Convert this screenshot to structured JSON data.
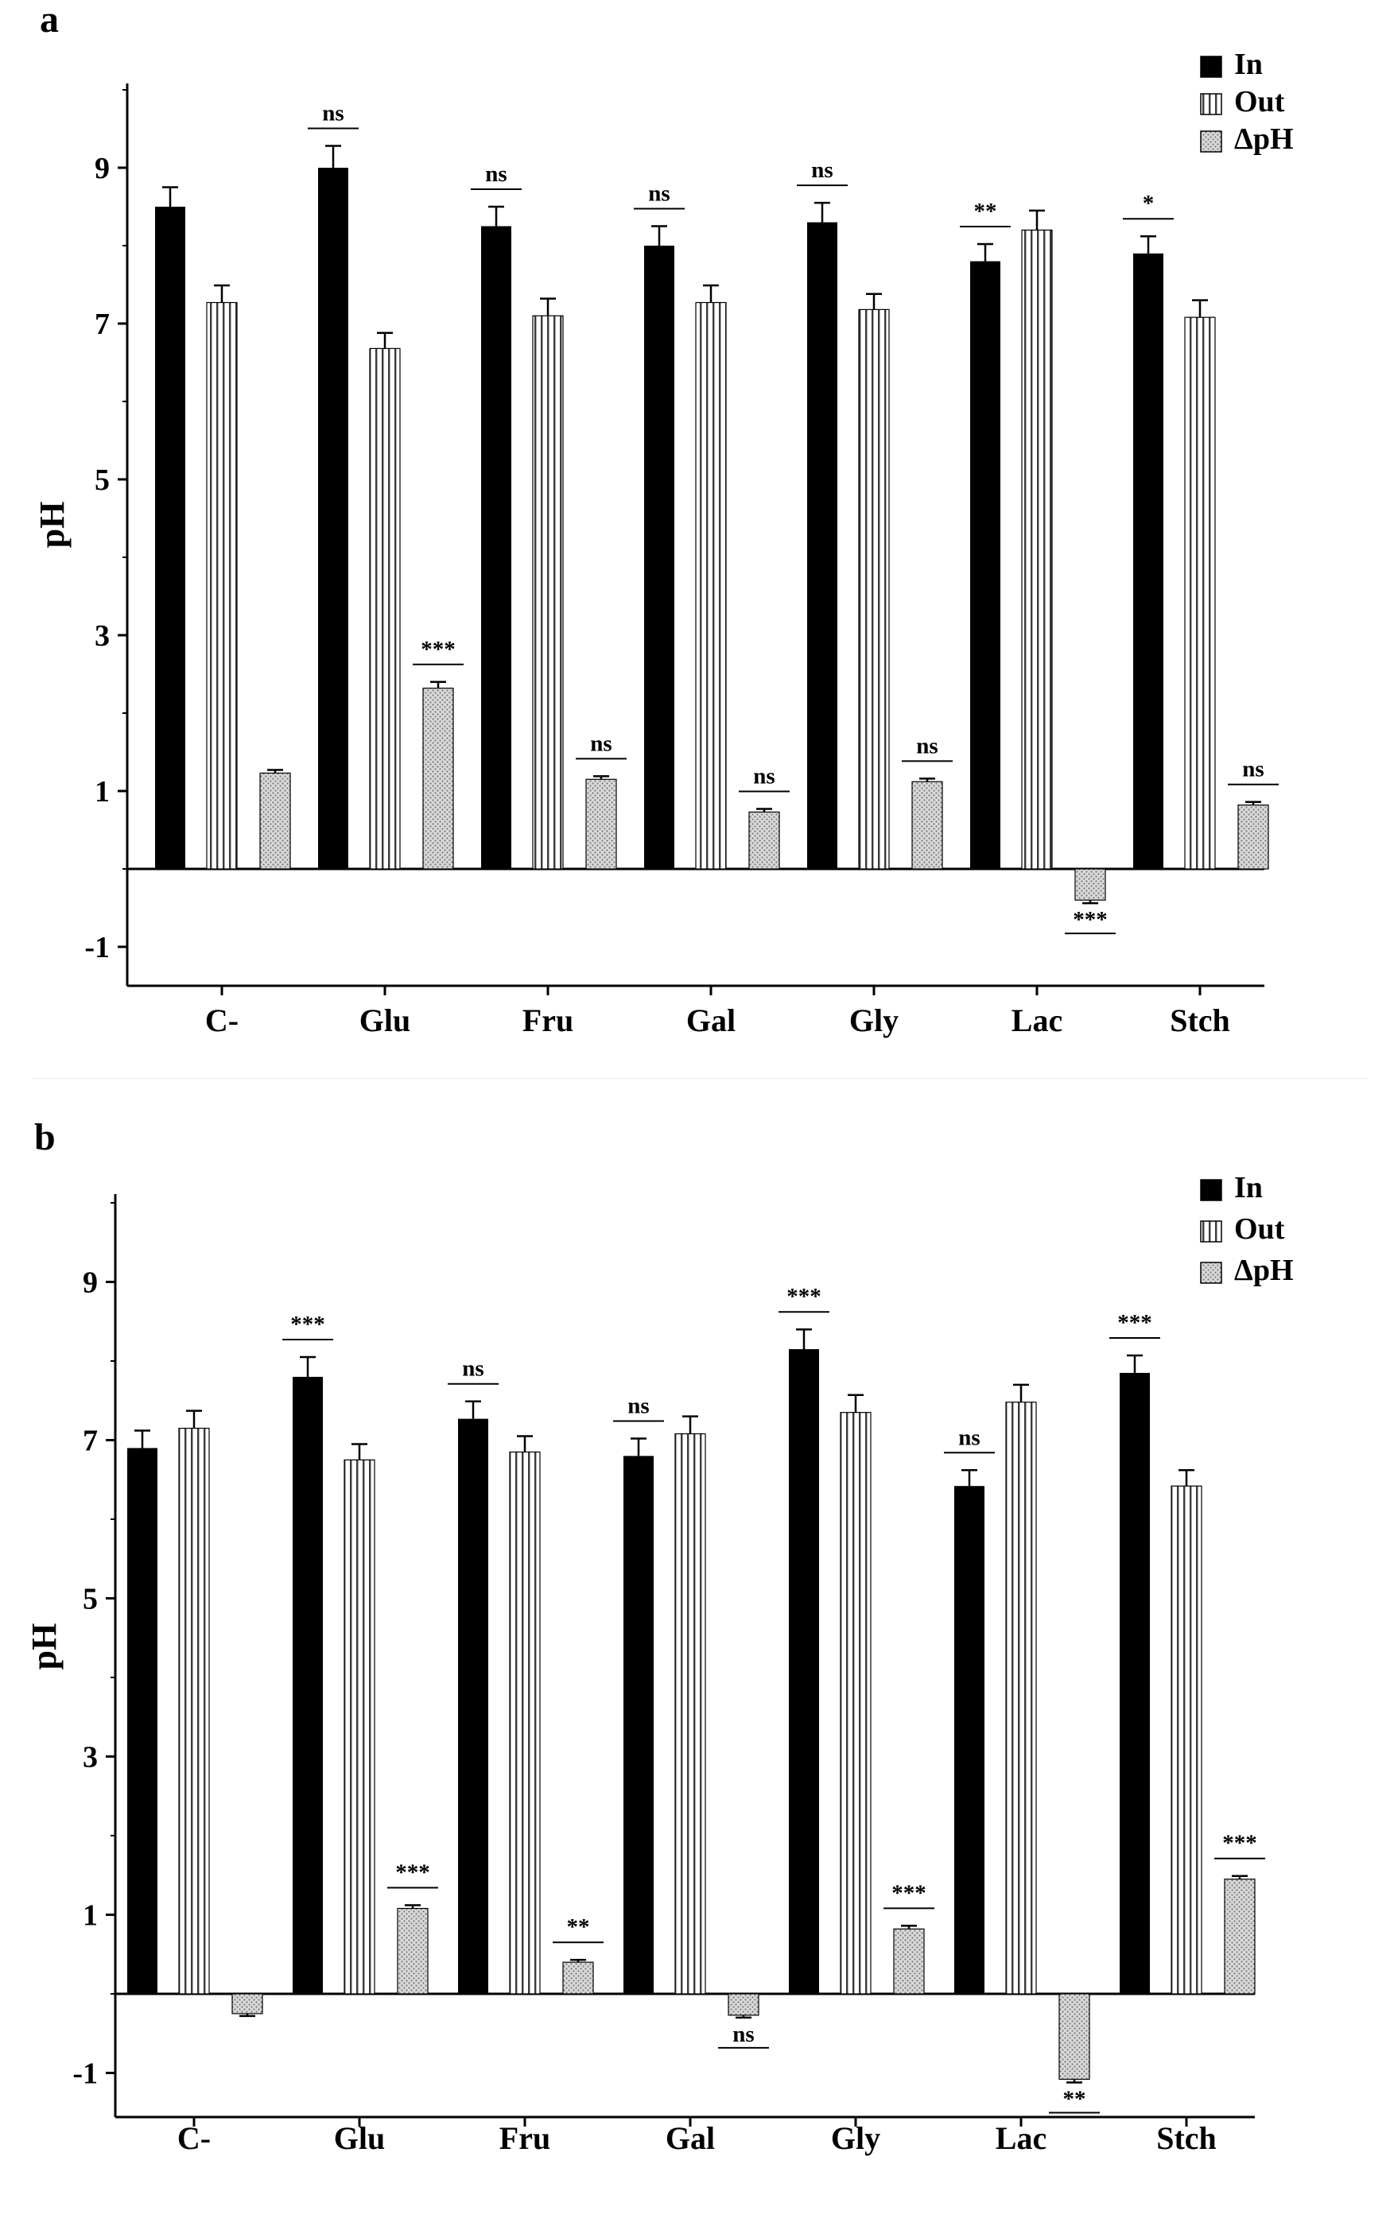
{
  "colors": {
    "in": "#000000",
    "out": "#ffffff",
    "delta": "#d9d9d9",
    "axis": "#000000"
  },
  "legend": [
    "In",
    "Out",
    "ΔpH"
  ],
  "chart_data": [
    {
      "panel": "a",
      "type": "bar",
      "ylabel": "pH",
      "ylim": [
        -1.5,
        10
      ],
      "yticks": [
        -1,
        1,
        3,
        5,
        7,
        9
      ],
      "categories": [
        "C-",
        "Glu",
        "Fru",
        "Gal",
        "Gly",
        "Lac",
        "Stch"
      ],
      "series": [
        {
          "name": "In",
          "values": [
            8.5,
            9.0,
            8.25,
            8.0,
            8.3,
            7.8,
            7.9
          ],
          "errors": [
            0.25,
            0.28,
            0.25,
            0.25,
            0.25,
            0.22,
            0.22
          ]
        },
        {
          "name": "Out",
          "values": [
            7.27,
            6.68,
            7.1,
            7.27,
            7.18,
            8.2,
            7.08
          ],
          "errors": [
            0.22,
            0.2,
            0.22,
            0.22,
            0.2,
            0.25,
            0.22
          ]
        },
        {
          "name": "ΔpH",
          "values": [
            1.23,
            2.32,
            1.15,
            0.73,
            1.12,
            -0.4,
            0.82
          ],
          "errors": [
            0.04,
            0.08,
            0.04,
            0.04,
            0.04,
            0.04,
            0.04
          ]
        }
      ],
      "annotations": [
        {
          "category": "Glu",
          "series": "In",
          "label": "ns"
        },
        {
          "category": "Fru",
          "series": "In",
          "label": "ns"
        },
        {
          "category": "Gal",
          "series": "In",
          "label": "ns"
        },
        {
          "category": "Gly",
          "series": "In",
          "label": "ns"
        },
        {
          "category": "Lac",
          "series": "In",
          "label": "**"
        },
        {
          "category": "Stch",
          "series": "In",
          "label": "*"
        },
        {
          "category": "Glu",
          "series": "ΔpH",
          "label": "***"
        },
        {
          "category": "Fru",
          "series": "ΔpH",
          "label": "ns"
        },
        {
          "category": "Gal",
          "series": "ΔpH",
          "label": "ns"
        },
        {
          "category": "Gly",
          "series": "ΔpH",
          "label": "ns"
        },
        {
          "category": "Lac",
          "series": "ΔpH",
          "label": "***"
        },
        {
          "category": "Stch",
          "series": "ΔpH",
          "label": "ns"
        }
      ]
    },
    {
      "panel": "b",
      "type": "bar",
      "ylabel": "pH",
      "ylim": [
        -1.5,
        10
      ],
      "yticks": [
        -1,
        1,
        3,
        5,
        7,
        9
      ],
      "categories": [
        "C-",
        "Glu",
        "Fru",
        "Gal",
        "Gly",
        "Lac",
        "Stch"
      ],
      "series": [
        {
          "name": "In",
          "values": [
            6.9,
            7.8,
            7.27,
            6.8,
            8.15,
            6.42,
            7.85
          ],
          "errors": [
            0.22,
            0.25,
            0.22,
            0.22,
            0.25,
            0.2,
            0.22
          ]
        },
        {
          "name": "Out",
          "values": [
            7.15,
            6.75,
            6.85,
            7.08,
            7.35,
            7.48,
            6.42
          ],
          "errors": [
            0.22,
            0.2,
            0.2,
            0.22,
            0.22,
            0.22,
            0.2
          ]
        },
        {
          "name": "ΔpH",
          "values": [
            -0.25,
            1.08,
            0.4,
            -0.27,
            0.82,
            -1.08,
            1.45
          ],
          "errors": [
            0.03,
            0.04,
            0.03,
            0.03,
            0.04,
            0.04,
            0.04
          ]
        }
      ],
      "annotations": [
        {
          "category": "Glu",
          "series": "In",
          "label": "***"
        },
        {
          "category": "Fru",
          "series": "In",
          "label": "ns"
        },
        {
          "category": "Gal",
          "series": "In",
          "label": "ns"
        },
        {
          "category": "Gly",
          "series": "In",
          "label": "***"
        },
        {
          "category": "Lac",
          "series": "In",
          "label": "ns"
        },
        {
          "category": "Stch",
          "series": "In",
          "label": "***"
        },
        {
          "category": "Glu",
          "series": "ΔpH",
          "label": "***"
        },
        {
          "category": "Fru",
          "series": "ΔpH",
          "label": "**"
        },
        {
          "category": "Gal",
          "series": "ΔpH",
          "label": "ns"
        },
        {
          "category": "Gly",
          "series": "ΔpH",
          "label": "***"
        },
        {
          "category": "Lac",
          "series": "ΔpH",
          "label": "**"
        },
        {
          "category": "Stch",
          "series": "ΔpH",
          "label": "***"
        }
      ]
    }
  ]
}
